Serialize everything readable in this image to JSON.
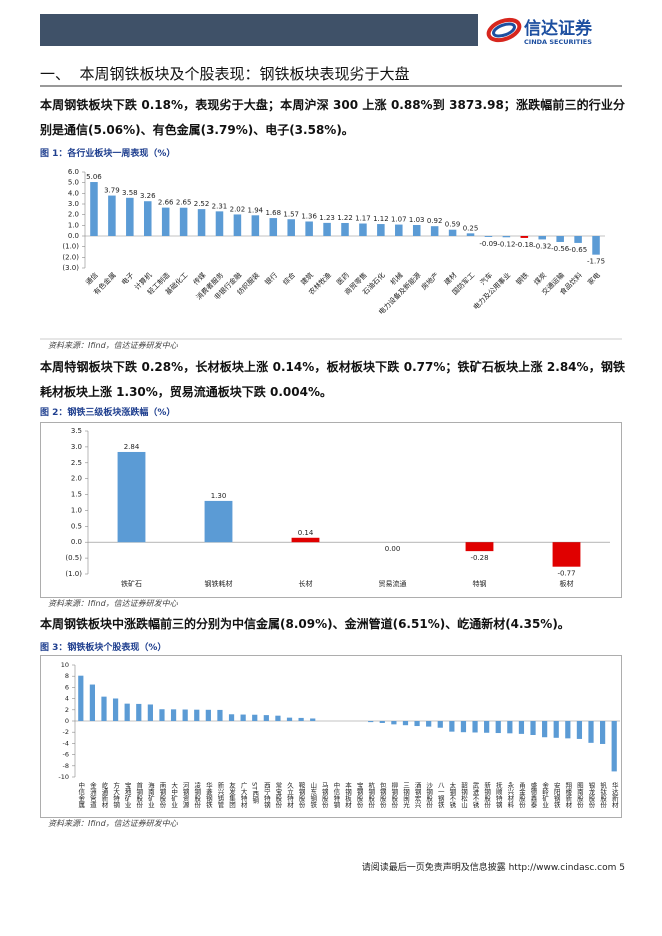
{
  "header": {
    "logo_cn": "信达证券",
    "logo_en": "CINDA SECURITIES"
  },
  "section_title": "一、  本周钢铁板块及个股表现：钢铁板块表现劣于大盘",
  "paragraphs": [
    "本周钢铁板块下跌 0.18%，表现劣于大盘；本周沪深 300 上涨 0.88%到 3873.98；涨跌幅前三的行业分别是通信(5.06%)、有色金属(3.79%)、电子(3.58%)。",
    "本周特钢板块下跌 0.28%，长材板块上涨 0.14%，板材板块下跌 0.77%；铁矿石板块上涨 2.84%，钢铁耗材板块上涨 1.30%，贸易流通板块下跌 0.004%。",
    "本周钢铁板块中涨跌幅前三的分别为中信金属(8.09%)、金洲管道(6.51%)、屹通新材(4.35%)。"
  ],
  "chart_data": [
    {
      "type": "bar",
      "title": "图 1：各行业板块一周表现（%）",
      "source": "资料来源：Ifind，信达证券研发中心",
      "categories": [
        "通信",
        "有色金属",
        "电子",
        "计算机",
        "轻工制造",
        "基础化工",
        "传媒",
        "消费者服务",
        "非银行金融",
        "纺织服装",
        "银行",
        "综合",
        "建筑",
        "农林牧渔",
        "医药",
        "商贸零售",
        "石油石化",
        "机械",
        "电力设备及新能源",
        "房地产",
        "建材",
        "国防军工",
        "汽车",
        "电力及公用事业",
        "钢铁",
        "煤炭",
        "交通运输",
        "食品饮料",
        "家电"
      ],
      "values": [
        5.06,
        3.79,
        3.58,
        3.26,
        2.66,
        2.65,
        2.52,
        2.31,
        2.02,
        1.94,
        1.68,
        1.57,
        1.36,
        1.23,
        1.22,
        1.17,
        1.12,
        1.07,
        1.03,
        0.92,
        0.59,
        0.25,
        -0.09,
        -0.12,
        -0.18,
        -0.32,
        -0.56,
        -0.65,
        -1.75
      ],
      "colors": [
        "#5b9bd5",
        "#5b9bd5",
        "#5b9bd5",
        "#5b9bd5",
        "#5b9bd5",
        "#5b9bd5",
        "#5b9bd5",
        "#5b9bd5",
        "#5b9bd5",
        "#5b9bd5",
        "#5b9bd5",
        "#5b9bd5",
        "#5b9bd5",
        "#5b9bd5",
        "#5b9bd5",
        "#5b9bd5",
        "#5b9bd5",
        "#5b9bd5",
        "#5b9bd5",
        "#5b9bd5",
        "#5b9bd5",
        "#5b9bd5",
        "#5b9bd5",
        "#5b9bd5",
        "#e00000",
        "#5b9bd5",
        "#5b9bd5",
        "#5b9bd5",
        "#5b9bd5"
      ],
      "data_labels": true,
      "ylim": [
        -3,
        6
      ],
      "yticks": [
        {
          "value": 6,
          "label": "6.0"
        },
        {
          "value": 5,
          "label": "5.0"
        },
        {
          "value": 4,
          "label": "4.0"
        },
        {
          "value": 3,
          "label": "3.0"
        },
        {
          "value": 2,
          "label": "2.0"
        },
        {
          "value": 1,
          "label": "1.0"
        },
        {
          "value": 0,
          "label": "0.0"
        },
        {
          "value": -1,
          "label": "(1.0)"
        },
        {
          "value": -2,
          "label": "(2.0)"
        },
        {
          "value": -3,
          "label": "(3.0)"
        }
      ]
    },
    {
      "type": "bar",
      "title": "图 2：钢铁三级板块涨跌幅（%）",
      "source": "资料来源：Ifind，信达证券研发中心",
      "categories": [
        "铁矿石",
        "钢铁耗材",
        "长材",
        "贸易流通",
        "特钢",
        "板材"
      ],
      "values": [
        2.84,
        1.3,
        0.14,
        0,
        -0.28,
        -0.77
      ],
      "value_labels": [
        "2.84",
        "1.30",
        "0.14",
        "0.00",
        "-0.28",
        "-0.77"
      ],
      "colors": [
        "#5b9bd5",
        "#5b9bd5",
        "#e00000",
        "#e00000",
        "#e00000",
        "#e00000"
      ],
      "data_labels": true,
      "ylim": [
        -1,
        3.5
      ],
      "yticks": [
        3.5,
        {
          "value": 3,
          "label": "3.0"
        },
        2.5,
        {
          "value": 2,
          "label": "2.0"
        },
        1.5,
        {
          "value": 1,
          "label": "1.0"
        },
        {
          "value": 0.5,
          "label": "0.5"
        },
        {
          "value": 0,
          "label": "0.0"
        },
        {
          "value": -0.5,
          "label": "(0.5)"
        },
        {
          "value": -1,
          "label": "(1.0)"
        }
      ]
    },
    {
      "type": "bar",
      "title": "图 3：钢铁板块个股表现（%）",
      "source": "资料来源：Ifind，信达证券研发中心",
      "categories": [
        "中信金属",
        "金洲管道",
        "屹通新材",
        "方大特钢",
        "宝地矿业",
        "首钢股份",
        "海南矿业",
        "南钢股份",
        "大中矿业",
        "河钢资源",
        "凌钢股份",
        "华菱钢铁",
        "新兴铸管",
        "友发集团",
        "广大特材",
        "ST西钢",
        "西宁特钢",
        "常宝股份",
        "久立特材",
        "鞍钢股份",
        "山东钢铁",
        "马钢股份",
        "中信特钢",
        "本钢板材",
        "宝钢股份",
        "杭钢股份",
        "包钢股份",
        "柳钢股份",
        "三钢闽光",
        "酒钢宏兴",
        "沙钢股份",
        "八一钢铁",
        "太钢不锈",
        "韶钢松山",
        "武进不锈",
        "新钢股份",
        "抚顺特钢",
        "永兴材料",
        "甬金股份",
        "盛德鑫泰",
        "金岭矿业",
        "安阳钢铁",
        "翔楼新材",
        "图南股份",
        "银龙股份",
        "钒钛股份",
        "华达新材"
      ],
      "values": [
        8.09,
        6.51,
        4.35,
        4.02,
        3.1,
        3.05,
        2.95,
        2.1,
        2.08,
        2.05,
        2.02,
        2.0,
        1.98,
        1.2,
        1.15,
        1.12,
        1.05,
        0.95,
        0.6,
        0.55,
        0.45,
        0,
        0,
        0,
        0,
        -0.2,
        -0.35,
        -0.6,
        -0.75,
        -0.9,
        -1.0,
        -1.2,
        -1.9,
        -2.0,
        -2.05,
        -2.1,
        -2.15,
        -2.2,
        -2.3,
        -2.5,
        -2.9,
        -3.0,
        -3.1,
        -3.2,
        -3.9,
        -4.1,
        -9.0
      ],
      "color": "#5b9bd5",
      "ylim": [
        -10,
        10
      ],
      "yticks": [
        10,
        8,
        6,
        4,
        2,
        0,
        -2,
        -4,
        -6,
        -8,
        -10
      ]
    }
  ],
  "footer": {
    "disclaimer": "请阅读最后一页免责声明及信息披露",
    "url": "http://www.cindasc.com",
    "page": "5"
  }
}
